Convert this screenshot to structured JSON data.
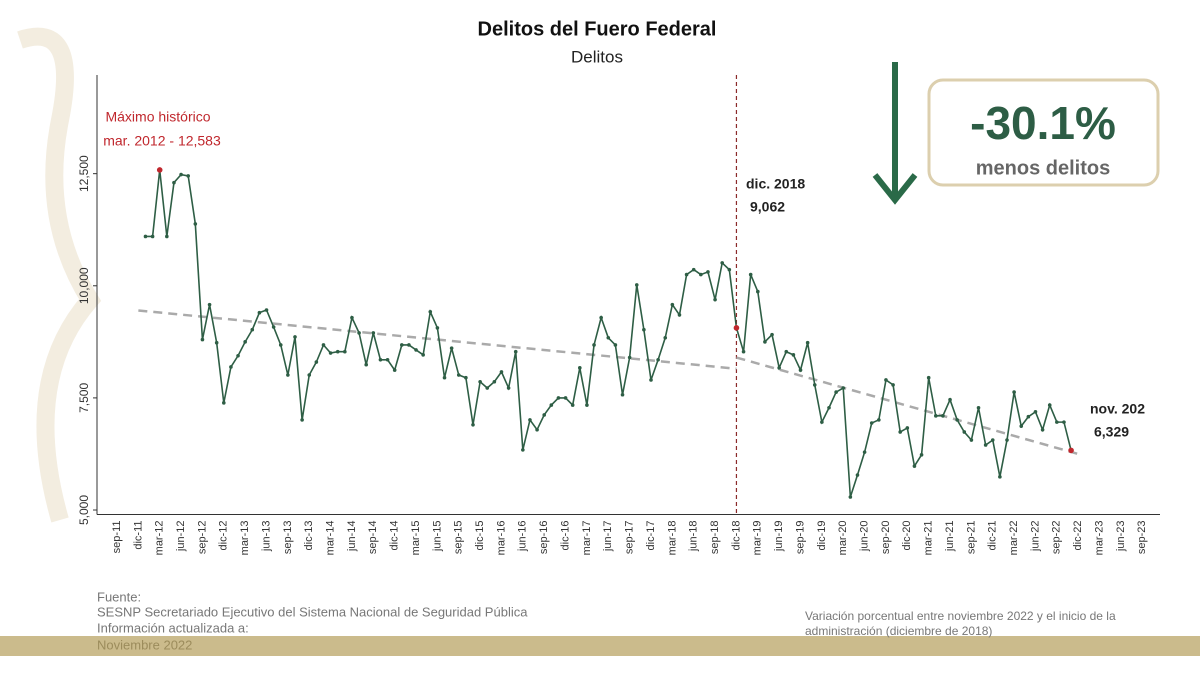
{
  "chart_data": {
    "type": "line",
    "title": "Delitos del Fuero Federal",
    "subtitle": "Delitos",
    "categories": [
      "sep-11",
      null,
      null,
      "dic-11",
      null,
      null,
      "mar-12",
      null,
      null,
      "jun-12",
      null,
      null,
      "sep-12",
      null,
      null,
      "dic-12",
      null,
      null,
      "mar-13",
      null,
      null,
      "jun-13",
      null,
      null,
      "sep-13",
      null,
      null,
      "dic-13",
      null,
      null,
      "mar-14",
      null,
      null,
      "jun-14",
      null,
      null,
      "sep-14",
      null,
      null,
      "dic-14",
      null,
      null,
      "mar-15",
      null,
      null,
      "jun-15",
      null,
      null,
      "sep-15",
      null,
      null,
      "dic-15",
      null,
      null,
      "mar-16",
      null,
      null,
      "jun-16",
      null,
      null,
      "sep-16",
      null,
      null,
      "dic-16",
      null,
      null,
      "mar-17",
      null,
      null,
      "jun-17",
      null,
      null,
      "sep-17",
      null,
      null,
      "dic-17",
      null,
      null,
      "mar-18",
      null,
      null,
      "jun-18",
      null,
      null,
      "sep-18",
      null,
      null,
      "dic-18",
      null,
      null,
      "mar-19",
      null,
      null,
      "jun-19",
      null,
      null,
      "sep-19",
      null,
      null,
      "dic-19",
      null,
      null,
      "mar-20",
      null,
      null,
      "jun-20",
      null,
      null,
      "sep-20",
      null,
      null,
      "dic-20",
      null,
      null,
      "mar-21",
      null,
      null,
      "jun-21",
      null,
      null,
      "sep-21",
      null,
      null,
      "dic-21",
      null,
      null,
      "mar-22",
      null,
      null,
      "jun-22",
      null,
      null,
      "sep-22",
      null,
      null,
      "dic-22",
      null,
      null,
      "mar-23",
      null,
      null,
      "jun-23",
      null,
      null,
      "sep-23"
    ],
    "series": [
      {
        "name": "Delitos",
        "color": "#2e5e45",
        "values": [
          null,
          null,
          null,
          null,
          11100,
          11100,
          12583,
          11100,
          12300,
          12480,
          12450,
          11380,
          8800,
          9580,
          8730,
          7390,
          8190,
          8440,
          8750,
          9020,
          9400,
          9460,
          9080,
          8680,
          8010,
          8860,
          7010,
          8010,
          8300,
          8680,
          8500,
          8530,
          8530,
          9290,
          8950,
          8240,
          8950,
          8350,
          8350,
          8120,
          8680,
          8680,
          8570,
          8460,
          9420,
          9060,
          7950,
          8610,
          8010,
          7950,
          6900,
          7860,
          7720,
          7860,
          8080,
          7720,
          8530,
          6340,
          7010,
          6790,
          7120,
          7340,
          7500,
          7500,
          7340,
          8170,
          7340,
          8680,
          9290,
          8840,
          8680,
          7570,
          8400,
          10020,
          9020,
          7900,
          8350,
          8840,
          9580,
          9350,
          10250,
          10360,
          10250,
          10310,
          9690,
          10510,
          10360,
          9062,
          8530,
          10250,
          9870,
          8750,
          8910,
          8170,
          8530,
          8460,
          8120,
          8730,
          7790,
          6960,
          7280,
          7630,
          7720,
          5290,
          5780,
          6290,
          6940,
          7010,
          7900,
          7790,
          6740,
          6830,
          5980,
          6230,
          7950,
          7100,
          7100,
          7460,
          7010,
          6740,
          6560,
          7280,
          6450,
          6560,
          5740,
          6560,
          7630,
          6870,
          7080,
          7190,
          6790,
          7340,
          6960,
          6960,
          6329,
          null,
          null,
          null,
          null,
          null,
          null,
          null,
          null,
          null,
          null
        ]
      }
    ],
    "highlight_color": "#c0272d",
    "trend": [
      {
        "from": "dic-11",
        "to": "dic-18",
        "values": [
          9450,
          8150
        ]
      },
      {
        "from": "dic-18",
        "to": "dic-22",
        "values": [
          8400,
          6250
        ]
      }
    ],
    "trend_color": "#aaaaaa",
    "ylim": [
      4900,
      14700
    ],
    "yticks": [
      {
        "value": 5000,
        "label": "5,000"
      },
      {
        "value": 7500,
        "label": "7,500"
      },
      {
        "value": 10000,
        "label": "10,000"
      },
      {
        "value": 12500,
        "label": "12,500"
      }
    ],
    "annotations": {
      "max": [
        "Máximo histórico",
        "mar. 2012 - 12,583"
      ],
      "admin": [
        "dic. 2018",
        "9,062"
      ],
      "last": [
        "nov. 202",
        "6,329"
      ]
    },
    "callout": {
      "value": "-30.1%",
      "text": "menos delitos"
    },
    "footer": {
      "source": [
        "Fuente:",
        "SESNP Secretariado Ejecutivo del Sistema Nacional de Seguridad Pública",
        "Información actualizada a:",
        "Noviembre 2022"
      ],
      "note": [
        "Variación porcentual entre noviembre 2022 y el inicio de la",
        "administración (diciembre de 2018)"
      ]
    }
  }
}
